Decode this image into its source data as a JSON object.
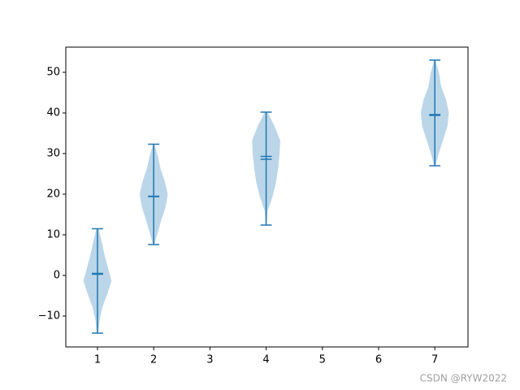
{
  "chart_data": {
    "type": "violin",
    "color": "#1f77b4",
    "widths": 0.5,
    "violins": [
      {
        "x": 1,
        "min": -14.2,
        "max": 11.5,
        "mean": 0.3,
        "median": 0.5,
        "density": [
          0.05,
          0.15,
          0.35,
          0.7,
          1.0,
          0.75,
          0.5,
          0.3,
          0.08
        ]
      },
      {
        "x": 2,
        "min": 7.6,
        "max": 32.3,
        "mean": 19.4,
        "median": 19.5,
        "density": [
          0.05,
          0.3,
          0.55,
          0.85,
          1.0,
          0.8,
          0.5,
          0.3,
          0.05
        ]
      },
      {
        "x": 4,
        "min": 12.4,
        "max": 40.2,
        "mean": 29.3,
        "median": 28.6,
        "density": [
          0.03,
          0.1,
          0.45,
          0.7,
          0.85,
          0.95,
          1.0,
          0.6,
          0.1
        ]
      },
      {
        "x": 7,
        "min": 27.0,
        "max": 53.0,
        "mean": 39.6,
        "median": 39.4,
        "density": [
          0.05,
          0.3,
          0.6,
          0.9,
          1.0,
          0.8,
          0.45,
          0.3,
          0.05
        ]
      }
    ],
    "xlim": [
      0.437,
      7.59
    ],
    "xticks": [
      1,
      2,
      3,
      4,
      5,
      6,
      7
    ],
    "ylim": [
      -17.6,
      56.2
    ],
    "yticks": [
      {
        "value": -10,
        "label": "−10"
      },
      0,
      10,
      20,
      30,
      40,
      50
    ]
  },
  "watermark": "CSDN @RYW2022"
}
